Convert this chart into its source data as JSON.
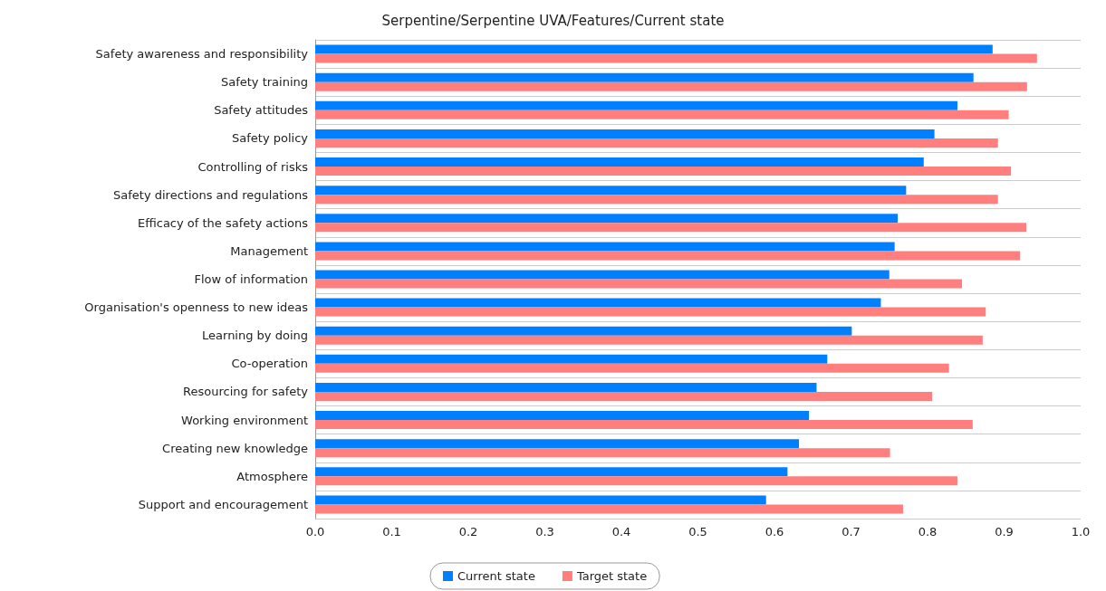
{
  "chart_data": {
    "type": "bar",
    "orientation": "horizontal",
    "title": "Serpentine/Serpentine UVA/Features/Current state",
    "categories": [
      "Safety awareness and responsibility",
      "Safety training",
      "Safety attitudes",
      "Safety policy",
      "Controlling of risks",
      "Safety directions and regulations",
      "Efficacy of the safety actions",
      "Management",
      "Flow of information",
      "Organisation's openness to new ideas",
      "Learning by doing",
      "Co-operation",
      "Resourcing for safety",
      "Working environment",
      "Creating new knowledge",
      "Atmosphere",
      "Support and encouragement"
    ],
    "series": [
      {
        "name": "Current state",
        "color": "#0080ff",
        "values": [
          0.885,
          0.86,
          0.839,
          0.809,
          0.795,
          0.772,
          0.761,
          0.757,
          0.75,
          0.739,
          0.701,
          0.669,
          0.655,
          0.645,
          0.632,
          0.617,
          0.589
        ]
      },
      {
        "name": "Target state",
        "color": "#ff7f7f",
        "values": [
          0.943,
          0.93,
          0.906,
          0.892,
          0.909,
          0.892,
          0.929,
          0.921,
          0.845,
          0.876,
          0.872,
          0.828,
          0.806,
          0.859,
          0.751,
          0.839,
          0.768
        ]
      }
    ],
    "xlim": [
      0,
      1
    ],
    "xticks": [
      {
        "value": 0,
        "label": "0.0"
      },
      {
        "value": 0.1,
        "label": "0.1"
      },
      {
        "value": 0.2,
        "label": "0.2"
      },
      {
        "value": 0.3,
        "label": "0.3"
      },
      {
        "value": 0.4,
        "label": "0.4"
      },
      {
        "value": 0.5,
        "label": "0.5"
      },
      {
        "value": 0.6,
        "label": "0.6"
      },
      {
        "value": 0.7,
        "label": "0.7"
      },
      {
        "value": 0.8,
        "label": "0.8"
      },
      {
        "value": 0.9,
        "label": "0.9"
      },
      {
        "value": 1,
        "label": "1.0"
      }
    ],
    "grid": "y",
    "legend": "bottom"
  }
}
